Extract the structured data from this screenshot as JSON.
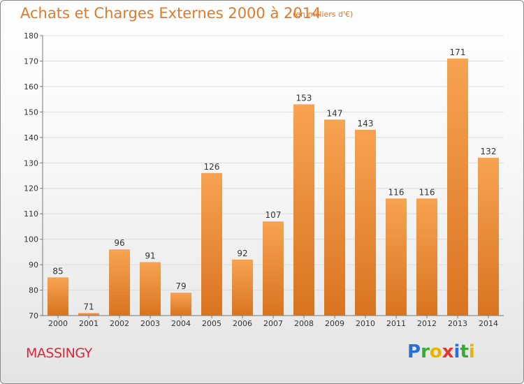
{
  "chart_data": {
    "type": "bar",
    "title": "Achats et Charges Externes 2000 à 2014",
    "subtitle": "(en milliers d'€)",
    "categories": [
      "2000",
      "2001",
      "2002",
      "2003",
      "2004",
      "2005",
      "2006",
      "2007",
      "2008",
      "2009",
      "2010",
      "2011",
      "2012",
      "2013",
      "2014"
    ],
    "values": [
      85,
      71,
      96,
      91,
      79,
      126,
      92,
      107,
      153,
      147,
      143,
      116,
      116,
      171,
      132
    ],
    "ylim": [
      70,
      180
    ],
    "yticks": [
      70,
      80,
      90,
      100,
      110,
      120,
      130,
      140,
      150,
      160,
      170,
      180
    ],
    "grid": true,
    "colors": {
      "bar_top": "#f7a352",
      "bar_bottom": "#d9741f",
      "text": "#333333"
    }
  },
  "commune": "MASSINGY",
  "logo": {
    "letters": [
      "P",
      "r",
      "o",
      "x",
      "i",
      "t",
      "i"
    ],
    "colors": [
      "#2a6fd6",
      "#39a935",
      "#e8b400",
      "#e03a2f",
      "#2a6fd6",
      "#39a935",
      "#e8b400"
    ]
  }
}
